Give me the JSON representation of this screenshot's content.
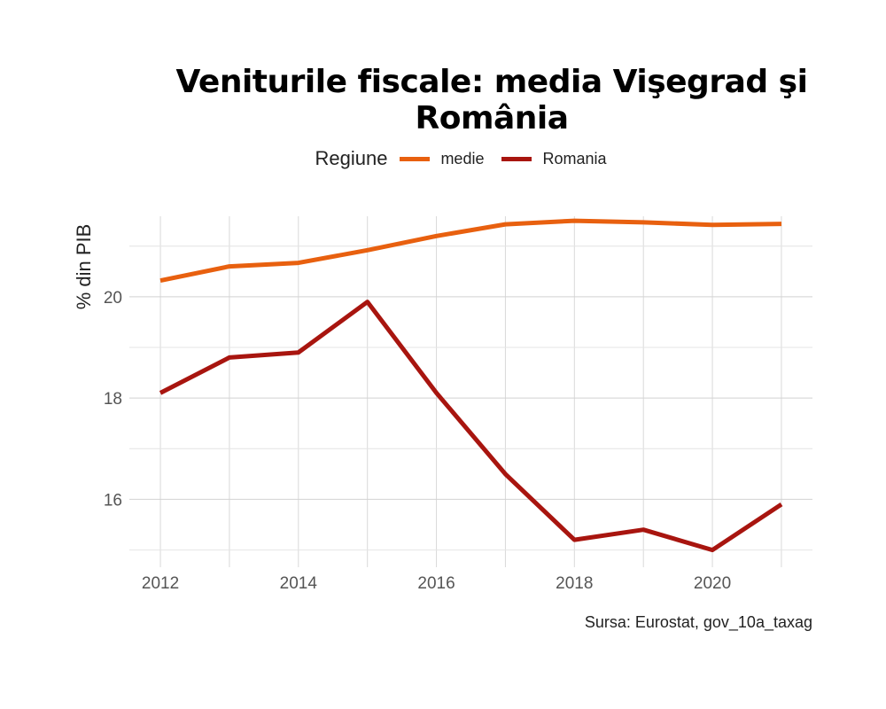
{
  "chart_data": {
    "type": "line",
    "title": "Veniturile fiscale: media Vişegrad şi România",
    "xlabel": "",
    "ylabel": "% din PIB",
    "caption": "Sursa: Eurostat, gov_10a_taxag",
    "legend": {
      "title": "Regiune",
      "placement": "top"
    },
    "x": [
      2012,
      2013,
      2014,
      2015,
      2016,
      2017,
      2018,
      2019,
      2020,
      2021
    ],
    "x_ticks": [
      2012,
      2014,
      2016,
      2018,
      2020
    ],
    "y_ticks": [
      16,
      18,
      20
    ],
    "xlim": [
      2011.55,
      2021.45
    ],
    "ylim": [
      14.8,
      21.8
    ],
    "grid": true,
    "series": [
      {
        "name": "medie",
        "color": "#E8600F",
        "values": [
          20.32,
          20.6,
          20.67,
          20.92,
          21.2,
          21.43,
          21.5,
          21.47,
          21.42,
          21.44
        ]
      },
      {
        "name": "Romania",
        "color": "#A8150F",
        "values": [
          18.1,
          18.8,
          18.9,
          19.9,
          18.1,
          16.5,
          15.2,
          15.4,
          15.0,
          15.9
        ]
      }
    ]
  }
}
